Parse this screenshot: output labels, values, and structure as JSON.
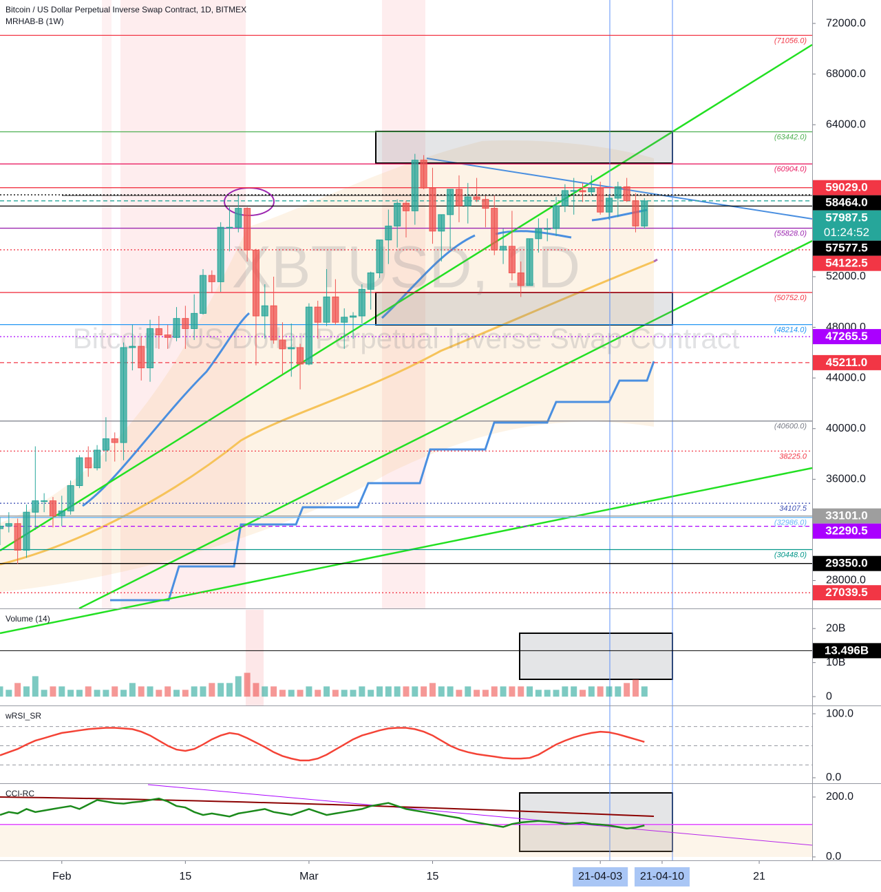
{
  "chart_data": [
    {
      "type": "candlestick",
      "title": "Bitcoin / US Dollar Perpetual Inverse Swap Contract, 1D, BITMEX",
      "subtitle": "MRHAB-B (1W)",
      "watermark": "XBTUSD, 1D",
      "watermark_subtitle": "Bitcoin / US Dollar Perpetual Inverse Swap Contract",
      "up_color": "#26a69a",
      "down_color": "#ef5350",
      "open": [
        32100,
        32300,
        32500,
        30400,
        33400,
        34300,
        34300,
        33100,
        33500,
        35500,
        37700,
        36900,
        38300,
        39200,
        38900,
        46400,
        46500,
        44800,
        47900,
        47400,
        47200,
        48700,
        47900,
        49100,
        52100,
        51600,
        55900,
        55900,
        57400,
        54100,
        48900,
        49700,
        47000,
        46300,
        46400,
        45100,
        49600,
        48400,
        50400,
        48400,
        48800,
        48900,
        51000,
        52300,
        54900,
        56000,
        57800,
        57200,
        61200,
        59000,
        55600,
        56900,
        58900,
        57600,
        58300,
        58100,
        57400,
        54100,
        54400,
        52300,
        51300,
        55000,
        55800,
        55800,
        57600,
        58800,
        58800,
        58700,
        59000,
        57100,
        58200,
        59100,
        58000,
        56000
      ],
      "high": [
        33000,
        33400,
        32900,
        34000,
        38600,
        34900,
        34600,
        34700,
        35900,
        37900,
        38600,
        38700,
        40900,
        39700,
        46800,
        48200,
        47300,
        48600,
        48900,
        48200,
        49600,
        49700,
        50600,
        52600,
        52500,
        56300,
        57500,
        58400,
        57500,
        54200,
        51400,
        52000,
        48400,
        48300,
        46700,
        49900,
        50100,
        52600,
        51800,
        49500,
        49200,
        51400,
        52400,
        54900,
        57300,
        58100,
        58000,
        61700,
        61600,
        60600,
        56900,
        58900,
        60000,
        59400,
        59800,
        58400,
        58400,
        55800,
        57200,
        53200,
        55000,
        56600,
        56600,
        58300,
        59300,
        59800,
        59400,
        60000,
        59500,
        58500,
        59500,
        59800,
        58600,
        58200
      ],
      "low": [
        30800,
        31800,
        29300,
        29800,
        32000,
        33400,
        32200,
        32300,
        33200,
        35300,
        36200,
        36700,
        37400,
        37400,
        37500,
        44600,
        43800,
        43700,
        46300,
        46300,
        46900,
        46300,
        47000,
        49000,
        50700,
        50800,
        54000,
        55500,
        53200,
        45000,
        47100,
        46700,
        44300,
        44100,
        43100,
        45000,
        47100,
        48100,
        48200,
        46300,
        47100,
        48300,
        49400,
        51900,
        53000,
        54300,
        55100,
        56100,
        58900,
        54600,
        53200,
        54200,
        56300,
        56200,
        57900,
        55900,
        53700,
        53000,
        51700,
        50400,
        51300,
        53900,
        54800,
        55200,
        57100,
        56900,
        57900,
        58400,
        56900,
        56500,
        56700,
        57900,
        55500,
        55800
      ],
      "close": [
        32300,
        32500,
        30400,
        33400,
        34300,
        34300,
        33100,
        33500,
        35500,
        37700,
        36900,
        38300,
        39200,
        38900,
        46400,
        46500,
        44800,
        47900,
        47400,
        47200,
        48700,
        47900,
        49100,
        52100,
        51600,
        55900,
        55900,
        57400,
        54100,
        48900,
        49700,
        47000,
        46300,
        46400,
        45100,
        49600,
        48400,
        50400,
        48400,
        48800,
        48900,
        51000,
        52300,
        54900,
        56000,
        57800,
        57200,
        61200,
        59000,
        55600,
        56900,
        58900,
        57600,
        58300,
        58100,
        57400,
        54100,
        54400,
        52300,
        51300,
        55000,
        55800,
        55800,
        57600,
        58800,
        58800,
        58700,
        59000,
        57100,
        58200,
        59100,
        58000,
        56000,
        57987.5
      ],
      "xlim": [
        0,
        92
      ],
      "xticks": [
        {
          "value": 7,
          "label": "Feb"
        },
        {
          "value": 21,
          "label": "15"
        },
        {
          "value": 35,
          "label": "Mar"
        },
        {
          "value": 49,
          "label": "15"
        },
        {
          "value": 68,
          "label": "21-04-03"
        },
        {
          "value": 75,
          "label": "21-04-10"
        },
        {
          "value": 86,
          "label": "21"
        }
      ],
      "ylim": [
        25800,
        73850
      ],
      "yticks": [
        {
          "value": 72000,
          "label": "72000.0"
        },
        {
          "value": 68000,
          "label": "68000.0"
        },
        {
          "value": 64000,
          "label": "64000.0"
        },
        {
          "value": 52000,
          "label": "52000.0"
        },
        {
          "value": 48000,
          "label": "48000.0"
        },
        {
          "value": 44000,
          "label": "44000.0"
        },
        {
          "value": 40000,
          "label": "40000.0"
        },
        {
          "value": 36000,
          "label": "36000.0"
        },
        {
          "value": 28000,
          "label": "28000.0"
        }
      ],
      "levels": [
        {
          "value": 71056,
          "label": "(71056.0)",
          "color": "#f23645",
          "style": "solid"
        },
        {
          "value": 63442,
          "label": "(63442.0)",
          "color": "#4caf50",
          "style": "solid"
        },
        {
          "value": 60904,
          "label": "(60904.0)",
          "color": "#e91e63",
          "style": "solid"
        },
        {
          "value": 55828,
          "label": "(55828.0)",
          "color": "#9c27b0",
          "style": "solid"
        },
        {
          "value": 50752,
          "label": "(50752.0)",
          "color": "#f23645",
          "style": "solid"
        },
        {
          "value": 48214,
          "label": "(48214.0)",
          "color": "#2196f3",
          "style": "solid"
        },
        {
          "value": 40600,
          "label": "(40600.0)",
          "color": "#787b86",
          "style": "solid"
        },
        {
          "value": 38225,
          "label": "38225.0",
          "color": "#f23645",
          "style": "dotted"
        },
        {
          "value": 34107.5,
          "label": "34107.5",
          "color": "#3f51b5",
          "style": "dotted"
        },
        {
          "value": 32986,
          "label": "(32986.0)",
          "color": "#64b5f6",
          "style": "solid"
        },
        {
          "value": 30448,
          "label": "(30448.0)",
          "color": "#009688",
          "style": "solid"
        }
      ],
      "price_tags": [
        {
          "value": 59029,
          "label": "59029.0",
          "color": "#f23645",
          "line": "solid"
        },
        {
          "value": 58464,
          "label": "58464.0",
          "color": "#000000",
          "line": "dotted"
        },
        {
          "value": 57987.5,
          "label": "57987.5",
          "countdown": "01:24:52",
          "color": "#26a69a",
          "line": "dashed"
        },
        {
          "value": 57577.5,
          "label": "57577.5",
          "color": "#000000",
          "line": "solid"
        },
        {
          "value": 54122.5,
          "label": "54122.5",
          "color": "#f23645",
          "line": "dotted"
        },
        {
          "value": 47265.5,
          "label": "47265.5",
          "color": "#aa00ff",
          "line": "dotted"
        },
        {
          "value": 45211,
          "label": "45211.0",
          "color": "#f23645",
          "line": "dashed"
        },
        {
          "value": 33101,
          "label": "33101.0",
          "color": "#9e9e9e",
          "line": "solid"
        },
        {
          "value": 32290.5,
          "label": "32290.5",
          "color": "#aa00ff",
          "line": "dashed"
        },
        {
          "value": 29350,
          "label": "29350.0",
          "color": "#000000",
          "line": "solid"
        },
        {
          "value": 27039.5,
          "label": "27039.5",
          "color": "#f23645",
          "line": "dotted"
        }
      ]
    },
    {
      "type": "bar",
      "title": "Volume (14)",
      "values": [
        3,
        2,
        4,
        3,
        6,
        2,
        3,
        3,
        2,
        2,
        3,
        2,
        2,
        3,
        2,
        4,
        3,
        3,
        2,
        3,
        2,
        2,
        3,
        3,
        4,
        4,
        4,
        6,
        7,
        4,
        3,
        3,
        2,
        2,
        2,
        3,
        2,
        3,
        2,
        2,
        2,
        3,
        2,
        3,
        3,
        3,
        3,
        3,
        3,
        4,
        3,
        3,
        2,
        3,
        2,
        2,
        3,
        3,
        3,
        3,
        3,
        2,
        2,
        2,
        3,
        3,
        2,
        3,
        3,
        3,
        3,
        4,
        5,
        3
      ],
      "ylim": [
        -2.6,
        25.5
      ],
      "yticks": [
        {
          "value": 20,
          "label": "20B"
        },
        {
          "value": 10,
          "label": "10B"
        },
        0
      ],
      "price_tag": {
        "value": 13.496,
        "label": "13.496B",
        "color": "#000000"
      }
    },
    {
      "type": "line",
      "title": "wRSI_SR",
      "color": "#f44336",
      "values": [
        35,
        40,
        45,
        52,
        58,
        62,
        66,
        70,
        72,
        74,
        76,
        77,
        78,
        78,
        77,
        76,
        72,
        66,
        58,
        50,
        44,
        42,
        45,
        52,
        60,
        66,
        70,
        68,
        62,
        55,
        48,
        40,
        34,
        30,
        27,
        27,
        30,
        36,
        44,
        52,
        60,
        66,
        70,
        74,
        77,
        78,
        78,
        76,
        72,
        66,
        58,
        50,
        44,
        40,
        37,
        35,
        33,
        31,
        30,
        30,
        31,
        36,
        44,
        52,
        58,
        63,
        67,
        70,
        72,
        71,
        68,
        64,
        60,
        56
      ],
      "levels": [
        80,
        50,
        20
      ],
      "ylim": [
        -8.6,
        110.8
      ],
      "yticks": [
        {
          "value": 100,
          "label": "100.0"
        },
        {
          "value": 0,
          "label": "0.0"
        }
      ]
    },
    {
      "type": "line",
      "title": "CCI-RC",
      "color": "#1b8a1b",
      "values": [
        140,
        150,
        145,
        160,
        150,
        155,
        160,
        165,
        170,
        160,
        175,
        190,
        185,
        180,
        178,
        182,
        185,
        190,
        195,
        185,
        170,
        165,
        150,
        140,
        145,
        140,
        135,
        145,
        150,
        155,
        160,
        150,
        145,
        140,
        150,
        160,
        150,
        140,
        145,
        150,
        155,
        160,
        170,
        175,
        180,
        170,
        160,
        155,
        150,
        145,
        140,
        135,
        130,
        120,
        115,
        110,
        105,
        100,
        110,
        115,
        118,
        120,
        118,
        115,
        110,
        112,
        115,
        110,
        108,
        105,
        100,
        95,
        98,
        105
      ],
      "ylim": [
        -11.5,
        241.4
      ],
      "yticks": [
        {
          "value": 200,
          "label": "200.0"
        },
        {
          "value": 0,
          "label": "0.0"
        }
      ]
    }
  ]
}
